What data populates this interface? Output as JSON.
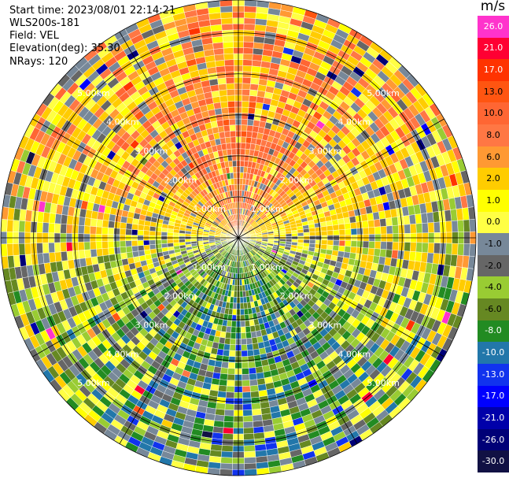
{
  "info": {
    "start_time": "Start time: 2023/08/01 22:14:21",
    "instrument": "WLS200s-181",
    "field": "Field: VEL",
    "elevation": "Elevation(deg): 35.30",
    "nrays": "NRays: 120"
  },
  "chart_data": {
    "type": "heatmap",
    "projection": "polar-ppi",
    "field": "VEL",
    "units": "m/s",
    "nrays": 120,
    "elevation_deg": 35.3,
    "range_rings_km": [
      1,
      2,
      3,
      4,
      5
    ],
    "range_ring_labels": [
      "1.00km",
      "2.00km",
      "3.00km",
      "4.00km",
      "5.00km"
    ],
    "max_range_km": 5.8,
    "colorbar": {
      "title": "m/s",
      "labels": [
        "26.0",
        "21.0",
        "17.0",
        "13.0",
        "10.0",
        "8.0",
        "6.0",
        "2.0",
        "1.0",
        "0.0",
        "-1.0",
        "-2.0",
        "-4.0",
        "-6.0",
        "-8.0",
        "-10.0",
        "-13.0",
        "-17.0",
        "-21.0",
        "-26.0",
        "-30.0"
      ],
      "colors": [
        "#ff33cc",
        "#ff0033",
        "#ff3300",
        "#ff5511",
        "#ff6633",
        "#ff7744",
        "#ff9933",
        "#ffcc00",
        "#ffff00",
        "#ffff44",
        "#778899",
        "#666666",
        "#99cc33",
        "#668822",
        "#228b22",
        "#2277aa",
        "#1133ee",
        "#0000ff",
        "#0000aa",
        "#000077",
        "#111144"
      ]
    },
    "velocity_pattern": {
      "description_free": true,
      "north_sector_mean": 8.0,
      "south_sector_mean": -6.0,
      "east_west_mean": 1.0
    }
  }
}
